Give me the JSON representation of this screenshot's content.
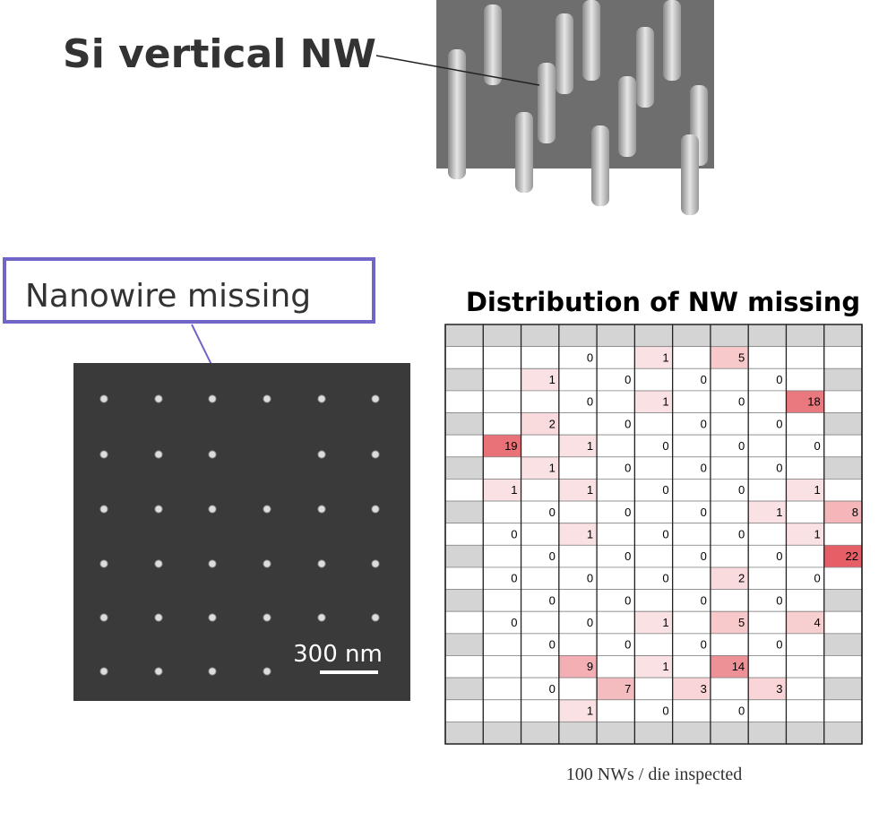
{
  "header": {
    "title": "Si vertical NW"
  },
  "callout": {
    "label": "Nanowire missing"
  },
  "sem_image": {
    "scale_bar": "300 nm"
  },
  "distribution": {
    "title": "Distribution of NW missing",
    "caption": "100 NWs / die inspected",
    "rows": [
      [
        null,
        null,
        null,
        null,
        null,
        null,
        null,
        null,
        null,
        null,
        null
      ],
      [
        null,
        null,
        null,
        0,
        null,
        1,
        null,
        5,
        null,
        null,
        null
      ],
      [
        null,
        null,
        1,
        null,
        0,
        null,
        0,
        null,
        0,
        null,
        null
      ],
      [
        null,
        null,
        null,
        0,
        null,
        1,
        null,
        0,
        null,
        18,
        null
      ],
      [
        null,
        null,
        2,
        null,
        0,
        null,
        0,
        null,
        0,
        null,
        null
      ],
      [
        null,
        19,
        null,
        1,
        null,
        0,
        null,
        0,
        null,
        0,
        null
      ],
      [
        null,
        null,
        1,
        null,
        0,
        null,
        0,
        null,
        0,
        null,
        null
      ],
      [
        null,
        1,
        null,
        1,
        null,
        0,
        null,
        0,
        null,
        1,
        null
      ],
      [
        null,
        null,
        0,
        null,
        0,
        null,
        0,
        null,
        1,
        null,
        8
      ],
      [
        null,
        0,
        null,
        1,
        null,
        0,
        null,
        0,
        null,
        1,
        null
      ],
      [
        null,
        null,
        0,
        null,
        0,
        null,
        0,
        null,
        0,
        null,
        22
      ],
      [
        null,
        0,
        null,
        0,
        null,
        0,
        null,
        2,
        null,
        0,
        null
      ],
      [
        null,
        null,
        0,
        null,
        0,
        null,
        0,
        null,
        0,
        null,
        null
      ],
      [
        null,
        0,
        null,
        0,
        null,
        1,
        null,
        5,
        null,
        4,
        null
      ],
      [
        null,
        null,
        0,
        null,
        0,
        null,
        0,
        null,
        0,
        null,
        null
      ],
      [
        null,
        null,
        null,
        9,
        null,
        1,
        null,
        14,
        null,
        null,
        null
      ],
      [
        null,
        null,
        0,
        null,
        7,
        null,
        3,
        null,
        3,
        null,
        null
      ],
      [
        null,
        null,
        null,
        1,
        null,
        0,
        null,
        0,
        null,
        null,
        null
      ],
      [
        null,
        null,
        null,
        null,
        null,
        null,
        null,
        null,
        null,
        null,
        null
      ]
    ]
  }
}
